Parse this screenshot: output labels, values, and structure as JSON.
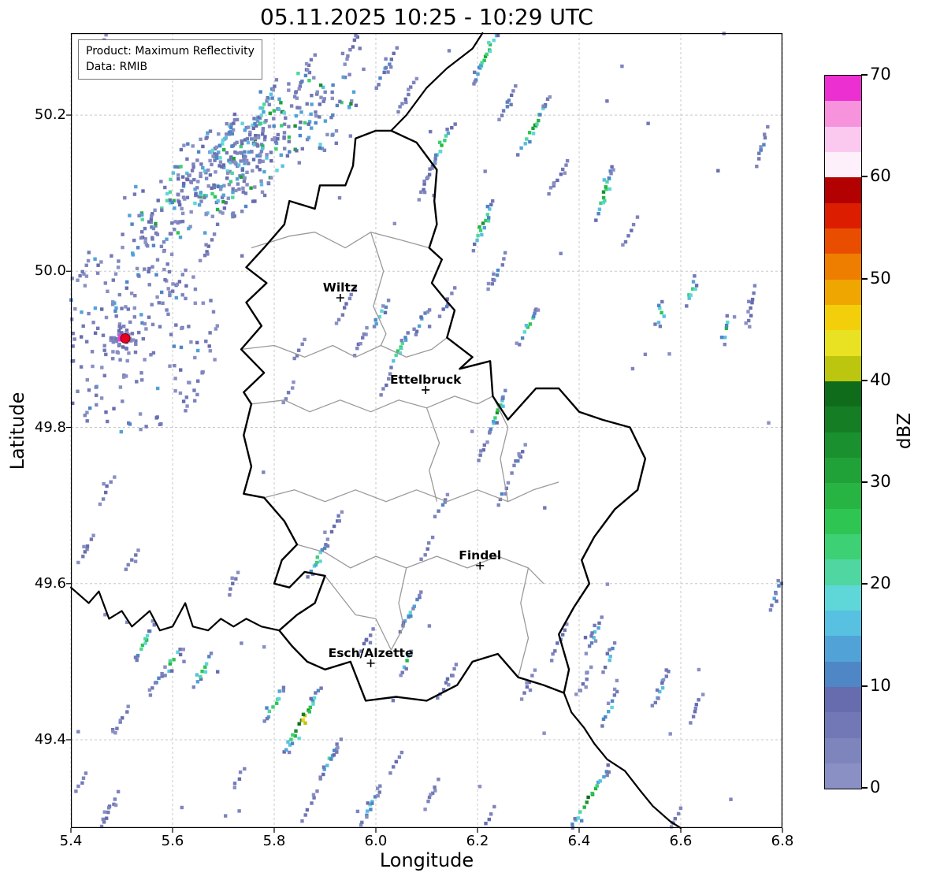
{
  "title": "05.11.2025 10:25 - 10:29 UTC",
  "info_box": {
    "line1": "Product: Maximum Reflectivity",
    "line2": "Data: RMIB"
  },
  "axes": {
    "xlabel": "Longitude",
    "ylabel": "Latitude",
    "xlim": [
      5.4,
      6.8
    ],
    "ylim": [
      49.287,
      50.305
    ],
    "xticks": [
      5.4,
      5.6,
      5.8,
      6.0,
      6.2,
      6.4,
      6.6,
      6.8
    ],
    "yticks": [
      49.4,
      49.6,
      49.8,
      50.0,
      50.2
    ],
    "grid_style": "dashed",
    "grid_color": "#c8c8c8"
  },
  "colorbar": {
    "label": "dBZ",
    "min": 0,
    "max": 70,
    "ticks": [
      0,
      10,
      20,
      30,
      40,
      50,
      60,
      70
    ],
    "colors_bottom_to_top": [
      "#8a90c3",
      "#7e84bc",
      "#7278b5",
      "#666cae",
      "#4f86c6",
      "#51a3d7",
      "#58c0e0",
      "#5fd7d8",
      "#50d6a0",
      "#3dd074",
      "#2ec553",
      "#27b443",
      "#21a238",
      "#1b902e",
      "#157e24",
      "#0f6c1b",
      "#bcc60f",
      "#e8e222",
      "#f3cf0b",
      "#f0a600",
      "#ee7e00",
      "#e94e00",
      "#dd1d00",
      "#b30000",
      "#fdf0fb",
      "#fbc9ef",
      "#f793dd",
      "#ec2fd0"
    ]
  },
  "cities": [
    {
      "name": "Wiltz",
      "lon": 5.93,
      "lat": 49.966
    },
    {
      "name": "Ettelbruck",
      "lon": 6.098,
      "lat": 49.848
    },
    {
      "name": "Findel",
      "lon": 6.205,
      "lat": 49.623
    },
    {
      "name": "Esch/Alzette",
      "lon": 5.99,
      "lat": 49.498
    }
  ],
  "radar_site": {
    "lon": 5.507,
    "lat": 49.914,
    "dot_color": "#e60021",
    "edge_color": "#7a0010",
    "halo_color": "#f23bd2"
  },
  "map": {
    "country_border_color": "#000000",
    "district_border_color": "#9a9a9a",
    "luxembourg": [
      [
        6.03,
        50.18
      ],
      [
        6.08,
        50.165
      ],
      [
        6.12,
        50.13
      ],
      [
        6.115,
        50.09
      ],
      [
        6.12,
        50.06
      ],
      [
        6.105,
        50.03
      ],
      [
        6.13,
        50.015
      ],
      [
        6.11,
        49.985
      ],
      [
        6.135,
        49.965
      ],
      [
        6.155,
        49.95
      ],
      [
        6.14,
        49.915
      ],
      [
        6.19,
        49.89
      ],
      [
        6.165,
        49.875
      ],
      [
        6.225,
        49.885
      ],
      [
        6.23,
        49.84
      ],
      [
        6.26,
        49.81
      ],
      [
        6.315,
        49.85
      ],
      [
        6.36,
        49.85
      ],
      [
        6.4,
        49.82
      ],
      [
        6.445,
        49.81
      ],
      [
        6.5,
        49.8
      ],
      [
        6.53,
        49.76
      ],
      [
        6.515,
        49.72
      ],
      [
        6.47,
        49.695
      ],
      [
        6.43,
        49.66
      ],
      [
        6.405,
        49.63
      ],
      [
        6.42,
        49.6
      ],
      [
        6.39,
        49.57
      ],
      [
        6.36,
        49.535
      ],
      [
        6.38,
        49.49
      ],
      [
        6.37,
        49.46
      ],
      [
        6.33,
        49.47
      ],
      [
        6.28,
        49.48
      ],
      [
        6.24,
        49.51
      ],
      [
        6.19,
        49.5
      ],
      [
        6.16,
        49.47
      ],
      [
        6.1,
        49.45
      ],
      [
        6.04,
        49.455
      ],
      [
        5.98,
        49.45
      ],
      [
        5.95,
        49.5
      ],
      [
        5.9,
        49.49
      ],
      [
        5.865,
        49.5
      ],
      [
        5.835,
        49.52
      ],
      [
        5.81,
        49.54
      ],
      [
        5.845,
        49.56
      ],
      [
        5.88,
        49.575
      ],
      [
        5.9,
        49.61
      ],
      [
        5.86,
        49.615
      ],
      [
        5.83,
        49.595
      ],
      [
        5.8,
        49.6
      ],
      [
        5.815,
        49.63
      ],
      [
        5.845,
        49.65
      ],
      [
        5.82,
        49.68
      ],
      [
        5.78,
        49.71
      ],
      [
        5.74,
        49.715
      ],
      [
        5.755,
        49.75
      ],
      [
        5.74,
        49.79
      ],
      [
        5.755,
        49.83
      ],
      [
        5.74,
        49.845
      ],
      [
        5.78,
        49.87
      ],
      [
        5.735,
        49.9
      ],
      [
        5.775,
        49.93
      ],
      [
        5.745,
        49.96
      ],
      [
        5.785,
        49.985
      ],
      [
        5.745,
        50.005
      ],
      [
        5.78,
        50.03
      ],
      [
        5.82,
        50.06
      ],
      [
        5.83,
        50.09
      ],
      [
        5.88,
        50.08
      ],
      [
        5.89,
        50.11
      ],
      [
        5.94,
        50.11
      ],
      [
        5.955,
        50.135
      ],
      [
        5.96,
        50.17
      ],
      [
        6.0,
        50.18
      ],
      [
        6.03,
        50.18
      ]
    ],
    "other_borders": [
      [
        [
          6.03,
          50.18
        ],
        [
          6.06,
          50.2
        ],
        [
          6.1,
          50.235
        ],
        [
          6.14,
          50.26
        ],
        [
          6.19,
          50.285
        ],
        [
          6.21,
          50.305
        ]
      ],
      [
        [
          5.4,
          49.595
        ],
        [
          5.435,
          49.575
        ],
        [
          5.455,
          49.59
        ],
        [
          5.475,
          49.555
        ],
        [
          5.5,
          49.565
        ],
        [
          5.52,
          49.545
        ],
        [
          5.555,
          49.565
        ],
        [
          5.575,
          49.54
        ],
        [
          5.6,
          49.545
        ],
        [
          5.625,
          49.575
        ],
        [
          5.64,
          49.545
        ],
        [
          5.67,
          49.54
        ],
        [
          5.695,
          49.555
        ],
        [
          5.72,
          49.545
        ],
        [
          5.745,
          49.555
        ],
        [
          5.775,
          49.545
        ],
        [
          5.81,
          49.54
        ]
      ],
      [
        [
          6.37,
          49.46
        ],
        [
          6.385,
          49.435
        ],
        [
          6.41,
          49.415
        ],
        [
          6.43,
          49.395
        ],
        [
          6.455,
          49.375
        ],
        [
          6.49,
          49.36
        ],
        [
          6.52,
          49.335
        ],
        [
          6.545,
          49.315
        ],
        [
          6.58,
          49.295
        ],
        [
          6.6,
          49.287
        ]
      ]
    ],
    "districts": [
      [
        [
          5.755,
          50.03
        ],
        [
          5.83,
          50.045
        ],
        [
          5.88,
          50.05
        ],
        [
          5.94,
          50.03
        ],
        [
          5.99,
          50.05
        ],
        [
          6.05,
          50.04
        ],
        [
          6.105,
          50.03
        ]
      ],
      [
        [
          5.735,
          49.9
        ],
        [
          5.8,
          49.905
        ],
        [
          5.86,
          49.89
        ],
        [
          5.915,
          49.905
        ],
        [
          5.96,
          49.89
        ],
        [
          6.01,
          49.905
        ],
        [
          6.06,
          49.89
        ],
        [
          6.11,
          49.9
        ],
        [
          6.14,
          49.915
        ]
      ],
      [
        [
          5.99,
          50.05
        ],
        [
          6.015,
          50.0
        ],
        [
          5.995,
          49.955
        ],
        [
          6.02,
          49.92
        ],
        [
          6.01,
          49.905
        ]
      ],
      [
        [
          5.755,
          49.83
        ],
        [
          5.82,
          49.835
        ],
        [
          5.87,
          49.82
        ],
        [
          5.93,
          49.835
        ],
        [
          5.99,
          49.82
        ],
        [
          6.045,
          49.835
        ],
        [
          6.1,
          49.825
        ],
        [
          6.155,
          49.84
        ],
        [
          6.2,
          49.83
        ],
        [
          6.23,
          49.84
        ]
      ],
      [
        [
          5.78,
          49.71
        ],
        [
          5.84,
          49.72
        ],
        [
          5.9,
          49.705
        ],
        [
          5.96,
          49.72
        ],
        [
          6.02,
          49.705
        ],
        [
          6.08,
          49.72
        ],
        [
          6.14,
          49.705
        ],
        [
          6.2,
          49.72
        ],
        [
          6.26,
          49.705
        ],
        [
          6.31,
          49.72
        ],
        [
          6.36,
          49.73
        ]
      ],
      [
        [
          5.845,
          49.65
        ],
        [
          5.9,
          49.64
        ],
        [
          5.95,
          49.62
        ],
        [
          6.0,
          49.635
        ],
        [
          6.06,
          49.62
        ],
        [
          6.12,
          49.635
        ],
        [
          6.18,
          49.62
        ],
        [
          6.24,
          49.635
        ],
        [
          6.3,
          49.62
        ],
        [
          6.33,
          49.6
        ]
      ],
      [
        [
          6.1,
          49.825
        ],
        [
          6.125,
          49.78
        ],
        [
          6.105,
          49.745
        ],
        [
          6.12,
          49.705
        ]
      ],
      [
        [
          6.23,
          49.84
        ],
        [
          6.26,
          49.8
        ],
        [
          6.245,
          49.76
        ],
        [
          6.26,
          49.705
        ]
      ],
      [
        [
          6.3,
          49.62
        ],
        [
          6.285,
          49.575
        ],
        [
          6.3,
          49.53
        ],
        [
          6.28,
          49.48
        ]
      ],
      [
        [
          6.06,
          49.62
        ],
        [
          6.045,
          49.575
        ],
        [
          6.055,
          49.545
        ],
        [
          6.03,
          49.515
        ]
      ],
      [
        [
          5.9,
          49.61
        ],
        [
          5.93,
          49.585
        ],
        [
          5.96,
          49.56
        ],
        [
          6.0,
          49.555
        ],
        [
          6.03,
          49.515
        ]
      ]
    ]
  },
  "echoes": {
    "seed": 1337,
    "streaks": [
      [
        5.96,
        50.295,
        0.07,
        62,
        3
      ],
      [
        6.02,
        50.26,
        0.06,
        60,
        5
      ],
      [
        6.06,
        50.225,
        0.05,
        58,
        3
      ],
      [
        5.46,
        50.29,
        0.03,
        60,
        2
      ],
      [
        5.44,
        50.265,
        0.025,
        60,
        1
      ],
      [
        6.22,
        50.28,
        0.09,
        62,
        12
      ],
      [
        6.26,
        50.215,
        0.05,
        60,
        4
      ],
      [
        6.31,
        50.185,
        0.08,
        58,
        13
      ],
      [
        6.13,
        50.16,
        0.07,
        60,
        11
      ],
      [
        6.1,
        50.115,
        0.05,
        60,
        4
      ],
      [
        6.36,
        50.12,
        0.05,
        55,
        3
      ],
      [
        6.45,
        50.1,
        0.07,
        72,
        13
      ],
      [
        6.5,
        50.05,
        0.04,
        60,
        3
      ],
      [
        6.76,
        50.16,
        0.05,
        75,
        4
      ],
      [
        6.21,
        50.06,
        0.07,
        65,
        12
      ],
      [
        6.24,
        50.0,
        0.05,
        60,
        5
      ],
      [
        6.62,
        49.975,
        0.04,
        70,
        11
      ],
      [
        6.74,
        49.955,
        0.05,
        80,
        4
      ],
      [
        6.3,
        49.93,
        0.05,
        62,
        12
      ],
      [
        6.56,
        49.945,
        0.035,
        85,
        11
      ],
      [
        6.69,
        49.925,
        0.035,
        85,
        11
      ],
      [
        5.94,
        49.955,
        0.05,
        60,
        3
      ],
      [
        5.97,
        49.91,
        0.04,
        60,
        3
      ],
      [
        6.01,
        49.945,
        0.04,
        60,
        9
      ],
      [
        6.045,
        49.9,
        0.05,
        62,
        12
      ],
      [
        6.09,
        49.935,
        0.04,
        60,
        6
      ],
      [
        6.14,
        49.96,
        0.04,
        60,
        4
      ],
      [
        6.02,
        49.855,
        0.03,
        60,
        3
      ],
      [
        5.85,
        49.9,
        0.03,
        60,
        2
      ],
      [
        5.83,
        49.845,
        0.03,
        60,
        2
      ],
      [
        6.24,
        49.82,
        0.06,
        65,
        12
      ],
      [
        6.28,
        49.76,
        0.04,
        60,
        4
      ],
      [
        6.21,
        49.77,
        0.03,
        60,
        3
      ],
      [
        5.47,
        49.72,
        0.04,
        60,
        3
      ],
      [
        5.43,
        49.645,
        0.04,
        60,
        3
      ],
      [
        5.52,
        49.63,
        0.03,
        60,
        2
      ],
      [
        5.72,
        49.6,
        0.03,
        60,
        3
      ],
      [
        5.425,
        50.0,
        0.03,
        60,
        2
      ],
      [
        5.885,
        49.63,
        0.05,
        60,
        11
      ],
      [
        5.92,
        49.675,
        0.04,
        60,
        4
      ],
      [
        6.13,
        49.7,
        0.035,
        60,
        4
      ],
      [
        6.25,
        49.715,
        0.03,
        60,
        3
      ],
      [
        6.1,
        49.645,
        0.03,
        60,
        3
      ],
      [
        6.07,
        49.565,
        0.06,
        60,
        7
      ],
      [
        6.14,
        49.475,
        0.05,
        60,
        4
      ],
      [
        5.98,
        49.525,
        0.04,
        60,
        4
      ],
      [
        6.06,
        49.5,
        0.03,
        60,
        11
      ],
      [
        6.3,
        49.47,
        0.04,
        60,
        4
      ],
      [
        6.36,
        49.525,
        0.05,
        65,
        4
      ],
      [
        6.43,
        49.535,
        0.05,
        65,
        7
      ],
      [
        6.46,
        49.505,
        0.04,
        65,
        7
      ],
      [
        6.56,
        49.465,
        0.05,
        65,
        7
      ],
      [
        6.63,
        49.44,
        0.04,
        65,
        3
      ],
      [
        5.545,
        49.525,
        0.05,
        60,
        12
      ],
      [
        5.6,
        49.5,
        0.04,
        60,
        12
      ],
      [
        5.66,
        49.49,
        0.05,
        60,
        11
      ],
      [
        5.57,
        49.475,
        0.04,
        60,
        4
      ],
      [
        5.5,
        49.425,
        0.04,
        60,
        3
      ],
      [
        5.475,
        49.31,
        0.05,
        60,
        3
      ],
      [
        5.42,
        49.345,
        0.03,
        60,
        2
      ],
      [
        5.8,
        49.445,
        0.05,
        60,
        11
      ],
      [
        5.855,
        49.425,
        0.1,
        58,
        17
      ],
      [
        5.91,
        49.375,
        0.06,
        60,
        7
      ],
      [
        5.99,
        49.315,
        0.06,
        60,
        7
      ],
      [
        6.11,
        49.33,
        0.04,
        60,
        3
      ],
      [
        6.04,
        49.37,
        0.03,
        60,
        3
      ],
      [
        5.87,
        49.315,
        0.04,
        60,
        3
      ],
      [
        5.73,
        49.35,
        0.03,
        60,
        2
      ],
      [
        6.22,
        49.295,
        0.04,
        60,
        3
      ],
      [
        6.42,
        49.325,
        0.1,
        55,
        14
      ],
      [
        6.46,
        49.44,
        0.05,
        60,
        7
      ],
      [
        6.41,
        49.475,
        0.04,
        60,
        3
      ],
      [
        6.59,
        49.3,
        0.03,
        60,
        3
      ],
      [
        6.785,
        49.585,
        0.04,
        70,
        6
      ],
      [
        5.7,
        50.165,
        0.07,
        60,
        7
      ],
      [
        5.78,
        50.21,
        0.08,
        60,
        9
      ],
      [
        5.63,
        50.12,
        0.05,
        60,
        4
      ],
      [
        5.86,
        50.25,
        0.06,
        60,
        4
      ],
      [
        5.55,
        50.06,
        0.04,
        60,
        3
      ],
      [
        5.61,
        49.985,
        0.04,
        60,
        3
      ],
      [
        5.67,
        50.03,
        0.04,
        60,
        3
      ]
    ],
    "clutter_rings": {
      "lon": 5.507,
      "lat": 49.914,
      "rings": 13,
      "r0": 0.012,
      "dr": 0.0088
    },
    "band": {
      "lon0": 5.48,
      "lon_span": 0.52,
      "lat_base": 50.04,
      "slope": 0.42,
      "spread": 0.075,
      "n": 430
    },
    "scatter": {
      "n": 55
    }
  }
}
